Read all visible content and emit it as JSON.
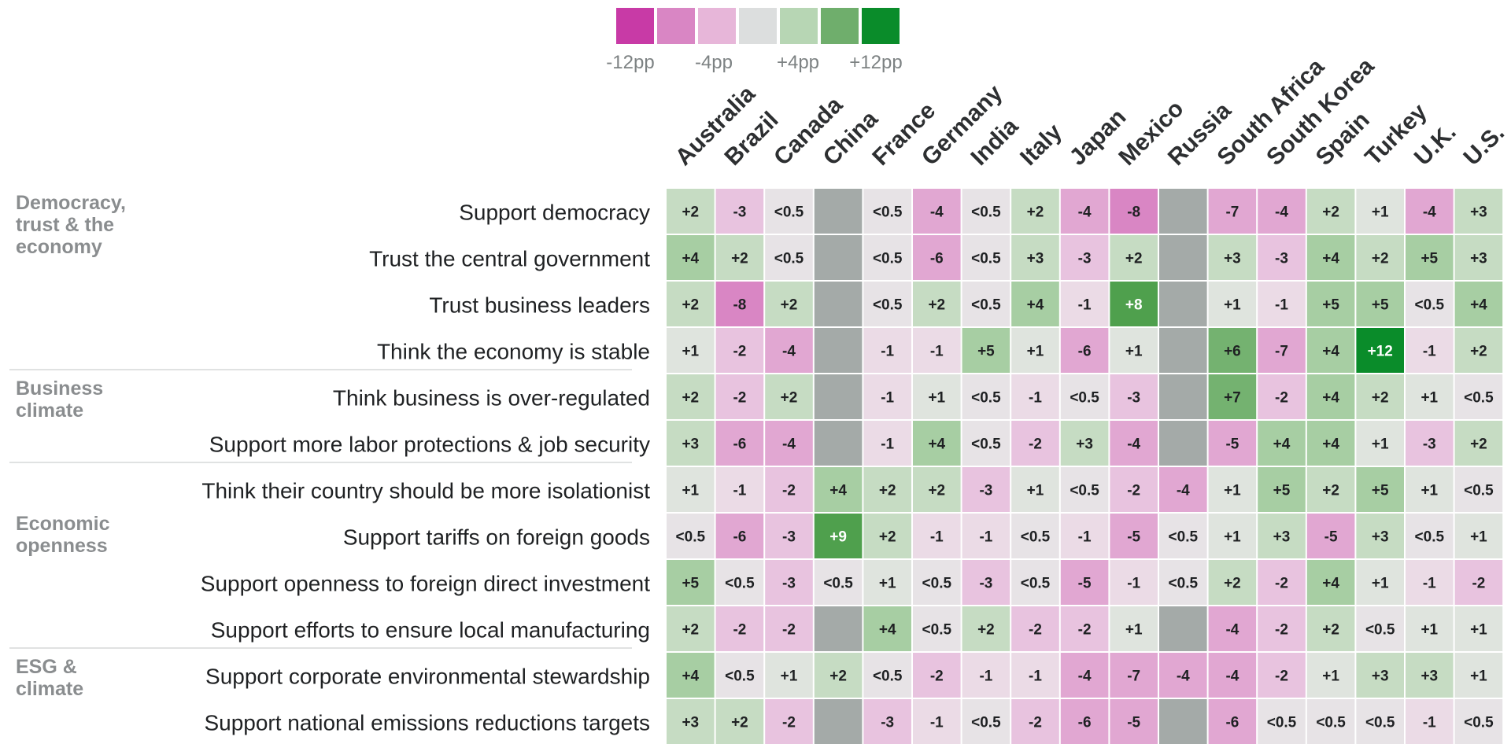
{
  "legend": {
    "colors": [
      "#c83aa6",
      "#d986c4",
      "#e7b6d9",
      "#dcdede",
      "#b7d6b4",
      "#6fae6c",
      "#0a8c2a"
    ],
    "labels": [
      "-12pp",
      "-4pp",
      "+4pp",
      "+12pp"
    ]
  },
  "null_color": "#a4aaa8",
  "chart_data": {
    "type": "heatmap",
    "columns": [
      "Australia",
      "Brazil",
      "Canada",
      "China",
      "France",
      "Germany",
      "India",
      "Italy",
      "Japan",
      "Mexico",
      "Russia",
      "South Africa",
      "South Korea",
      "Spain",
      "Turkey",
      "U.K.",
      "U.S."
    ],
    "groups": [
      {
        "label": "Democracy,\ntrust & the\neconomy",
        "rows": [
          0,
          1,
          2,
          3
        ]
      },
      {
        "label": "Business\nclimate",
        "rows": [
          4,
          5
        ]
      },
      {
        "label": "Economic\nopenness",
        "rows": [
          6,
          7,
          8,
          9
        ]
      },
      {
        "label": "ESG &\nclimate",
        "rows": [
          10,
          11
        ]
      }
    ],
    "rows": [
      {
        "label": "Support democracy",
        "cells": [
          "+2",
          "-3",
          "<0.5",
          null,
          "<0.5",
          "-4",
          "<0.5",
          "+2",
          "-4",
          "-8",
          null,
          "-7",
          "-4",
          "+2",
          "+1",
          "-4",
          "+3"
        ]
      },
      {
        "label": "Trust the central government",
        "cells": [
          "+4",
          "+2",
          "<0.5",
          null,
          "<0.5",
          "-6",
          "<0.5",
          "+3",
          "-3",
          "+2",
          null,
          "+3",
          "-3",
          "+4",
          "+2",
          "+5",
          "+3"
        ]
      },
      {
        "label": "Trust business leaders",
        "cells": [
          "+2",
          "-8",
          "+2",
          null,
          "<0.5",
          "+2",
          "<0.5",
          "+4",
          "-1",
          "+8",
          null,
          "+1",
          "-1",
          "+5",
          "+5",
          "<0.5",
          "+4"
        ]
      },
      {
        "label": "Think the economy is stable",
        "cells": [
          "+1",
          "-2",
          "-4",
          null,
          "-1",
          "-1",
          "+5",
          "+1",
          "-6",
          "+1",
          null,
          "+6",
          "-7",
          "+4",
          "+12",
          "-1",
          "+2"
        ]
      },
      {
        "label": "Think business is over-regulated",
        "cells": [
          "+2",
          "-2",
          "+2",
          null,
          "-1",
          "+1",
          "<0.5",
          "-1",
          "<0.5",
          "-3",
          null,
          "+7",
          "-2",
          "+4",
          "+2",
          "+1",
          "<0.5"
        ]
      },
      {
        "label": "Support more labor protections & job security",
        "cells": [
          "+3",
          "-6",
          "-4",
          null,
          "-1",
          "+4",
          "<0.5",
          "-2",
          "+3",
          "-4",
          null,
          "-5",
          "+4",
          "+4",
          "+1",
          "-3",
          "+2"
        ]
      },
      {
        "label": "Think their country should be more isolationist",
        "cells": [
          "+1",
          "-1",
          "-2",
          "+4",
          "+2",
          "+2",
          "-3",
          "+1",
          "<0.5",
          "-2",
          "-4",
          "+1",
          "+5",
          "+2",
          "+5",
          "+1",
          "<0.5"
        ]
      },
      {
        "label": "Support tariffs on foreign goods",
        "cells": [
          "<0.5",
          "-6",
          "-3",
          "+9",
          "+2",
          "-1",
          "-1",
          "<0.5",
          "-1",
          "-5",
          "<0.5",
          "+1",
          "+3",
          "-5",
          "+3",
          "<0.5",
          "+1"
        ]
      },
      {
        "label": "Support openness to foreign direct investment",
        "cells": [
          "+5",
          "<0.5",
          "-3",
          "<0.5",
          "+1",
          "<0.5",
          "-3",
          "<0.5",
          "-5",
          "-1",
          "<0.5",
          "+2",
          "-2",
          "+4",
          "+1",
          "-1",
          "-2"
        ]
      },
      {
        "label": "Support efforts to ensure local manufacturing",
        "cells": [
          "+2",
          "-2",
          "-2",
          null,
          "+4",
          "<0.5",
          "+2",
          "-2",
          "-2",
          "+1",
          null,
          "-4",
          "-2",
          "+2",
          "<0.5",
          "+1",
          "+1"
        ]
      },
      {
        "label": "Support corporate environmental stewardship",
        "cells": [
          "+4",
          "<0.5",
          "+1",
          "+2",
          "<0.5",
          "-2",
          "-1",
          "-1",
          "-4",
          "-7",
          "-4",
          "-4",
          "-2",
          "+1",
          "+3",
          "+3",
          "+1"
        ]
      },
      {
        "label": "Support national emissions reductions targets",
        "cells": [
          "+3",
          "+2",
          "-2",
          null,
          "-3",
          "-1",
          "<0.5",
          "-2",
          "-6",
          "-5",
          null,
          "-6",
          "<0.5",
          "<0.5",
          "<0.5",
          "-1",
          "<0.5"
        ]
      }
    ]
  }
}
